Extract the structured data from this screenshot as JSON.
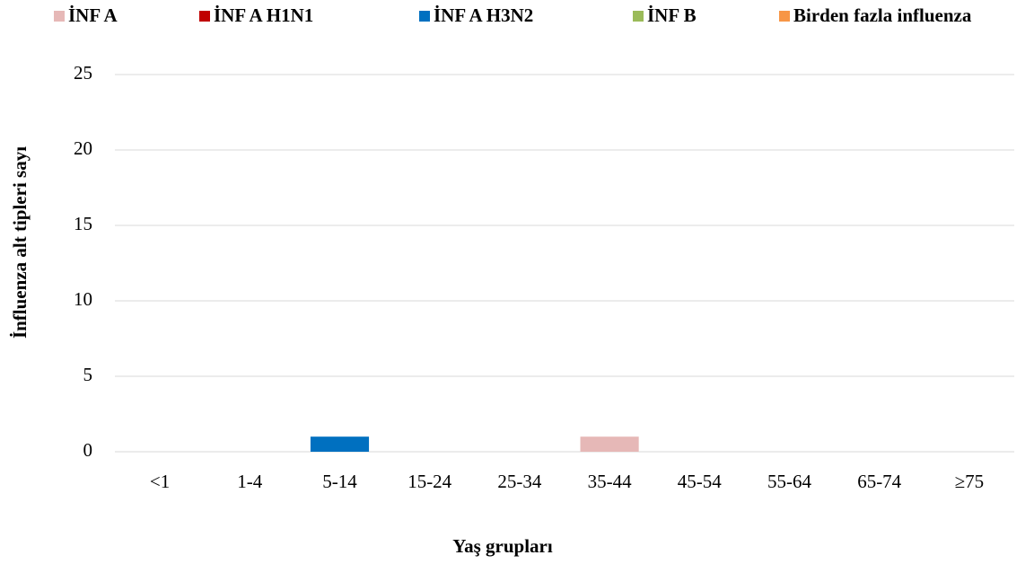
{
  "chart_data": {
    "type": "bar",
    "stacked": true,
    "y_axis_label": "İnfluenza alt tipleri sayı",
    "x_axis_label": "Yaş grupları",
    "categories": [
      "<1",
      "1-4",
      "5-14",
      "15-24",
      "25-34",
      "35-44",
      "45-54",
      "55-64",
      "65-74",
      "≥75"
    ],
    "series": [
      {
        "name": "İNF A",
        "color": "#e6b8b7",
        "values": [
          0,
          0,
          0,
          0,
          0,
          1,
          0,
          0,
          0,
          0
        ]
      },
      {
        "name": "İNF A H1N1",
        "color": "#c00000",
        "values": [
          0,
          0,
          0,
          0,
          0,
          0,
          0,
          0,
          0,
          0
        ]
      },
      {
        "name": "İNF A H3N2",
        "color": "#0070c0",
        "values": [
          0,
          0,
          1,
          0,
          0,
          0,
          0,
          0,
          0,
          0
        ]
      },
      {
        "name": "İNF B",
        "color": "#9bbb59",
        "values": [
          0,
          0,
          0,
          0,
          0,
          0,
          0,
          0,
          0,
          0
        ]
      },
      {
        "name": "Birden fazla influenza",
        "color": "#f79646",
        "values": [
          0,
          0,
          0,
          0,
          0,
          0,
          0,
          0,
          0,
          0
        ]
      }
    ],
    "ylim": [
      0,
      25
    ],
    "yticks": [
      0,
      5,
      10,
      15,
      20,
      25
    ],
    "grid": true,
    "legend": "top"
  }
}
